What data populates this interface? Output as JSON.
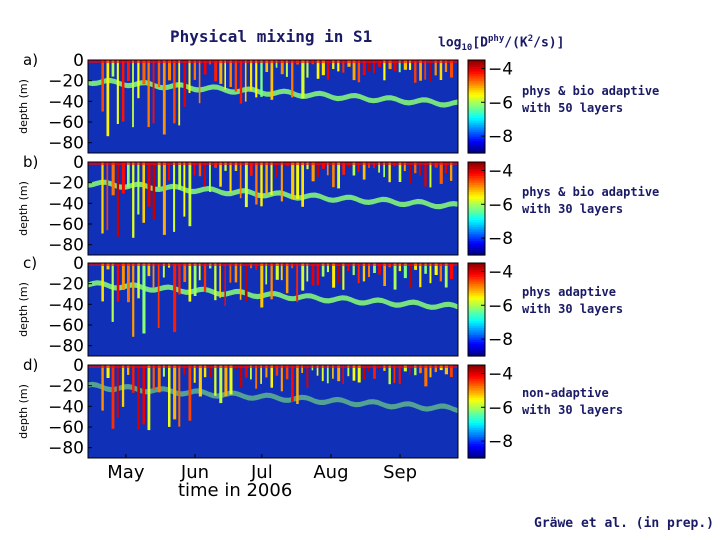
{
  "header": {
    "title": "Physical mixing in S1",
    "colorbar_label_prefix": "log",
    "colorbar_label_sub": "10",
    "colorbar_label_mid": "[D",
    "colorbar_label_sup_phy": "phy",
    "colorbar_label_unit_prefix": "/(K",
    "colorbar_label_sup_2": "2",
    "colorbar_label_unit_suffix": "/s)]"
  },
  "panels": [
    {
      "letter": "a)",
      "line1": "phys & bio adaptive",
      "line2": "with 50 layers"
    },
    {
      "letter": "b)",
      "line1": "phys & bio adaptive",
      "line2": "with 30 layers"
    },
    {
      "letter": "c)",
      "line1": "phys adaptive",
      "line2": "with 30 layers"
    },
    {
      "letter": "d)",
      "line1": "non-adaptive",
      "line2": "with 30 layers"
    }
  ],
  "credit": "Gräwe et al. (in prep.)",
  "colors": {
    "text": "#1a1a66",
    "background_field": "#1030b8"
  },
  "chart_data": {
    "type": "heatmap",
    "title": "Physical mixing in S1",
    "xlabel": "time in 2006",
    "ylabel": "depth (m)",
    "x_ticks": [
      "May",
      "Jun",
      "Jul",
      "Aug",
      "Sep"
    ],
    "x_tick_days": [
      121,
      152,
      182,
      213,
      244
    ],
    "xlim_days": [
      104,
      270
    ],
    "y_ticks": [
      "0",
      "−20",
      "−40",
      "−60",
      "−80"
    ],
    "y_tick_values": [
      0,
      -20,
      -40,
      -60,
      -80
    ],
    "ylim": [
      -90,
      0
    ],
    "colorbar": {
      "label": "log10[Dphy/(K2/s)]",
      "ticks": [
        "−4",
        "−6",
        "−8"
      ],
      "tick_values": [
        -4,
        -6,
        -8
      ],
      "range": [
        -9,
        -3.5
      ]
    },
    "panel_ids": [
      "a",
      "b",
      "c",
      "d"
    ]
  }
}
